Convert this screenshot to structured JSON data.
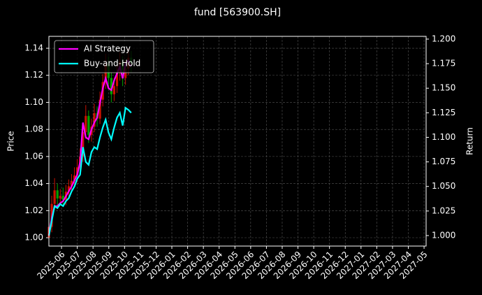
{
  "chart_data": {
    "type": "candlestick",
    "title": "fund [563900.SH]",
    "ylabel": "Price",
    "y2label": "Return",
    "x": [
      -0.8,
      -0.62,
      -0.44,
      -0.26,
      -0.08,
      0.1,
      0.28,
      0.46,
      0.64,
      0.82,
      1.0,
      1.18,
      1.36,
      1.54,
      1.72,
      1.9,
      2.08,
      2.26,
      2.44,
      2.62,
      2.8,
      2.98,
      3.16,
      3.34,
      3.52,
      3.7,
      3.88,
      4.06,
      4.24,
      4.42
    ],
    "open": [
      1.0,
      1.008,
      1.025,
      1.035,
      1.029,
      1.031,
      1.028,
      1.034,
      1.038,
      1.042,
      1.046,
      1.052,
      1.06,
      1.078,
      1.09,
      1.076,
      1.082,
      1.092,
      1.088,
      1.102,
      1.115,
      1.128,
      1.118,
      1.106,
      1.112,
      1.122,
      1.13,
      1.118,
      1.125,
      1.133
    ],
    "high": [
      1.013,
      1.031,
      1.044,
      1.04,
      1.036,
      1.037,
      1.039,
      1.043,
      1.047,
      1.052,
      1.058,
      1.066,
      1.084,
      1.098,
      1.094,
      1.088,
      1.099,
      1.097,
      1.108,
      1.121,
      1.136,
      1.134,
      1.122,
      1.118,
      1.128,
      1.137,
      1.134,
      1.131,
      1.14,
      1.138
    ],
    "low": [
      0.996,
      1.004,
      1.021,
      1.024,
      1.025,
      1.023,
      1.024,
      1.03,
      1.034,
      1.038,
      1.041,
      1.048,
      1.056,
      1.073,
      1.07,
      1.071,
      1.078,
      1.082,
      1.084,
      1.097,
      1.11,
      1.112,
      1.1,
      1.101,
      1.107,
      1.116,
      1.112,
      1.113,
      1.12,
      1.122
    ],
    "close": [
      1.008,
      1.025,
      1.035,
      1.029,
      1.031,
      1.028,
      1.034,
      1.038,
      1.042,
      1.046,
      1.052,
      1.06,
      1.078,
      1.09,
      1.076,
      1.082,
      1.092,
      1.088,
      1.102,
      1.115,
      1.128,
      1.118,
      1.106,
      1.112,
      1.122,
      1.13,
      1.118,
      1.125,
      1.133,
      1.128
    ],
    "up_color": "#cc1100",
    "down_color": "#00a000",
    "series": [
      {
        "name": "AI Strategy",
        "color": "#ff00ff",
        "axis": "y2",
        "values": [
          1.0,
          1.018,
          1.03,
          1.03,
          1.033,
          1.035,
          1.04,
          1.045,
          1.05,
          1.056,
          1.062,
          1.075,
          1.115,
          1.1,
          1.098,
          1.108,
          1.115,
          1.12,
          1.135,
          1.15,
          1.16,
          1.15,
          1.148,
          1.158,
          1.165,
          1.172,
          1.16,
          1.175,
          1.178,
          1.172
        ]
      },
      {
        "name": "Buy-and-Hold",
        "color": "#00ffff",
        "axis": "y2",
        "values": [
          1.0,
          1.015,
          1.03,
          1.028,
          1.032,
          1.03,
          1.035,
          1.038,
          1.045,
          1.05,
          1.058,
          1.062,
          1.09,
          1.075,
          1.072,
          1.085,
          1.09,
          1.088,
          1.1,
          1.11,
          1.118,
          1.105,
          1.098,
          1.11,
          1.12,
          1.125,
          1.112,
          1.13,
          1.128,
          1.125
        ]
      }
    ],
    "xlim": [
      -0.8,
      23.13
    ],
    "xticks": [
      {
        "value": 0,
        "label": "2025-06"
      },
      {
        "value": 1,
        "label": "2025-07"
      },
      {
        "value": 2,
        "label": "2025-08"
      },
      {
        "value": 3,
        "label": "2025-09"
      },
      {
        "value": 4,
        "label": "2025-10"
      },
      {
        "value": 5,
        "label": "2025-11"
      },
      {
        "value": 6,
        "label": "2025-12"
      },
      {
        "value": 7,
        "label": "2026-01"
      },
      {
        "value": 8,
        "label": "2026-02"
      },
      {
        "value": 9,
        "label": "2026-03"
      },
      {
        "value": 10,
        "label": "2026-04"
      },
      {
        "value": 11,
        "label": "2026-05"
      },
      {
        "value": 12,
        "label": "2026-06"
      },
      {
        "value": 13,
        "label": "2026-07"
      },
      {
        "value": 14,
        "label": "2026-08"
      },
      {
        "value": 15,
        "label": "2026-09"
      },
      {
        "value": 16,
        "label": "2026-10"
      },
      {
        "value": 17,
        "label": "2026-11"
      },
      {
        "value": 18,
        "label": "2026-12"
      },
      {
        "value": 19,
        "label": "2027-01"
      },
      {
        "value": 20,
        "label": "2027-02"
      },
      {
        "value": 21,
        "label": "2027-03"
      },
      {
        "value": 22,
        "label": "2027-04"
      },
      {
        "value": 23,
        "label": "2027-05"
      }
    ],
    "ylim": [
      0.9938,
      1.1488
    ],
    "yticks": [
      {
        "value": 1.0,
        "label": "1.00"
      },
      {
        "value": 1.02,
        "label": "1.02"
      },
      {
        "value": 1.04,
        "label": "1.04"
      },
      {
        "value": 1.06,
        "label": "1.06"
      },
      {
        "value": 1.08,
        "label": "1.08"
      },
      {
        "value": 1.1,
        "label": "1.10"
      },
      {
        "value": 1.12,
        "label": "1.12"
      },
      {
        "value": 1.14,
        "label": "1.14"
      }
    ],
    "y2lim": [
      0.9893,
      1.2028
    ],
    "y2ticks": [
      {
        "value": 1.0,
        "label": "1.000"
      },
      {
        "value": 1.025,
        "label": "1.025"
      },
      {
        "value": 1.05,
        "label": "1.050"
      },
      {
        "value": 1.075,
        "label": "1.075"
      },
      {
        "value": 1.1,
        "label": "1.100"
      },
      {
        "value": 1.125,
        "label": "1.125"
      },
      {
        "value": 1.15,
        "label": "1.150"
      },
      {
        "value": 1.175,
        "label": "1.175"
      },
      {
        "value": 1.2,
        "label": "1.200"
      }
    ],
    "grid": true,
    "legend": "upper left"
  }
}
